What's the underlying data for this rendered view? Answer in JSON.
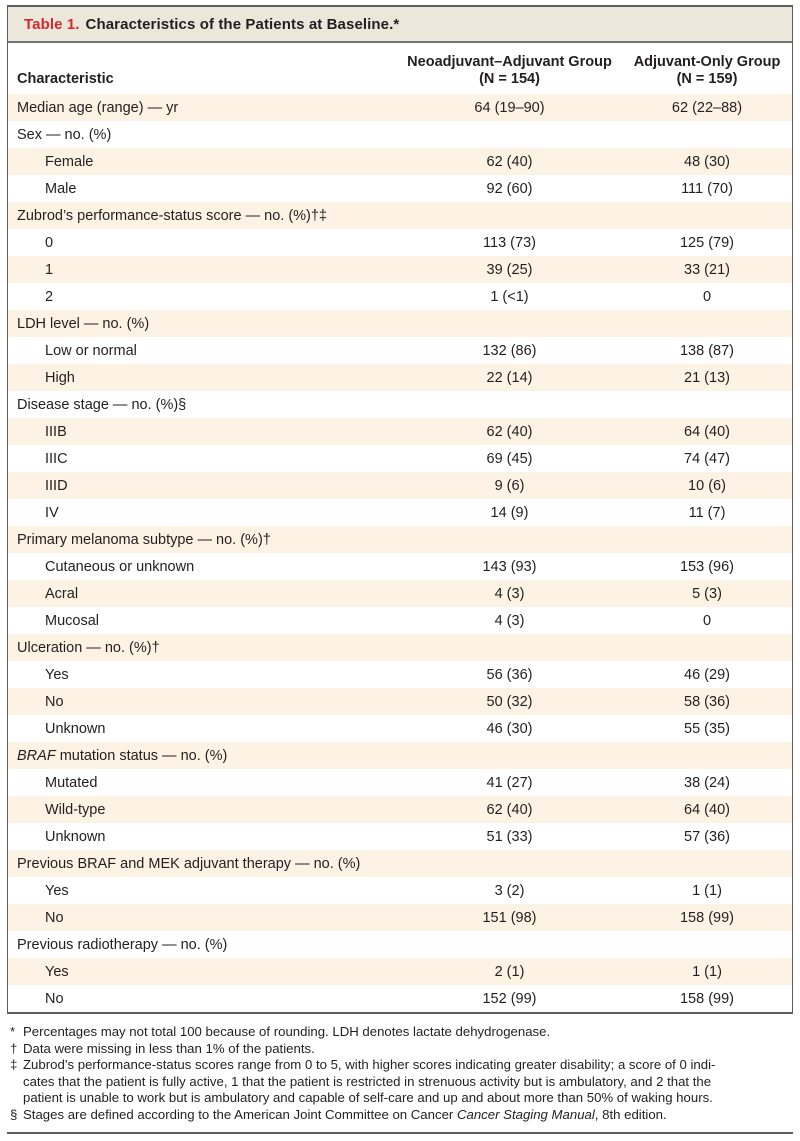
{
  "colors": {
    "accent_red": "#d7282e",
    "row_shade": "#fdf3e4",
    "title_band": "#ece7db",
    "border_gray": "#5c5d5f",
    "text": "#231f20"
  },
  "table": {
    "title_label": "Table 1.",
    "title_text": "Characteristics of the Patients at Baseline.*",
    "columns": {
      "characteristic": "Characteristic",
      "group1_line1": "Neoadjuvant–Adjuvant Group",
      "group1_line2": "(N = 154)",
      "group2_line1": "Adjuvant-Only Group",
      "group2_line2": "(N = 159)"
    },
    "rows": [
      {
        "label": "Median age (range) — yr",
        "indent": false,
        "shaded": true,
        "v1": "64 (19–90)",
        "v2": "62 (22–88)"
      },
      {
        "label": "Sex — no. (%)",
        "indent": false,
        "shaded": false,
        "v1": "",
        "v2": ""
      },
      {
        "label": "Female",
        "indent": true,
        "shaded": true,
        "v1": "62 (40)",
        "v2": "48 (30)"
      },
      {
        "label": "Male",
        "indent": true,
        "shaded": false,
        "v1": "92 (60)",
        "v2": "111 (70)"
      },
      {
        "label": "Zubrod’s performance-status score — no. (%)†‡",
        "indent": false,
        "shaded": true,
        "v1": "",
        "v2": ""
      },
      {
        "label": "0",
        "indent": true,
        "shaded": false,
        "v1": "113 (73)",
        "v2": "125 (79)"
      },
      {
        "label": "1",
        "indent": true,
        "shaded": true,
        "v1": "39 (25)",
        "v2": "33 (21)"
      },
      {
        "label": "2",
        "indent": true,
        "shaded": false,
        "v1": "1 (<1)",
        "v2": "0"
      },
      {
        "label": "LDH level — no. (%)",
        "indent": false,
        "shaded": true,
        "v1": "",
        "v2": ""
      },
      {
        "label": "Low or normal",
        "indent": true,
        "shaded": false,
        "v1": "132 (86)",
        "v2": "138 (87)"
      },
      {
        "label": "High",
        "indent": true,
        "shaded": true,
        "v1": "22 (14)",
        "v2": "21 (13)"
      },
      {
        "label": "Disease stage — no. (%)§",
        "indent": false,
        "shaded": false,
        "v1": "",
        "v2": ""
      },
      {
        "label": "IIIB",
        "indent": true,
        "shaded": true,
        "v1": "62 (40)",
        "v2": "64 (40)"
      },
      {
        "label": "IIIC",
        "indent": true,
        "shaded": false,
        "v1": "69 (45)",
        "v2": "74 (47)"
      },
      {
        "label": "IIID",
        "indent": true,
        "shaded": true,
        "v1": "9 (6)",
        "v2": "10 (6)"
      },
      {
        "label": "IV",
        "indent": true,
        "shaded": false,
        "v1": "14 (9)",
        "v2": "11 (7)"
      },
      {
        "label": "Primary melanoma subtype — no. (%)†",
        "indent": false,
        "shaded": true,
        "v1": "",
        "v2": ""
      },
      {
        "label": "Cutaneous or unknown",
        "indent": true,
        "shaded": false,
        "v1": "143 (93)",
        "v2": "153 (96)"
      },
      {
        "label": "Acral",
        "indent": true,
        "shaded": true,
        "v1": "4 (3)",
        "v2": "5 (3)"
      },
      {
        "label": "Mucosal",
        "indent": true,
        "shaded": false,
        "v1": "4 (3)",
        "v2": "0"
      },
      {
        "label": "Ulceration — no. (%)†",
        "indent": false,
        "shaded": true,
        "v1": "",
        "v2": ""
      },
      {
        "label": "Yes",
        "indent": true,
        "shaded": false,
        "v1": "56 (36)",
        "v2": "46 (29)"
      },
      {
        "label": "No",
        "indent": true,
        "shaded": true,
        "v1": "50 (32)",
        "v2": "58 (36)"
      },
      {
        "label": "Unknown",
        "indent": true,
        "shaded": false,
        "v1": "46 (30)",
        "v2": "55 (35)"
      },
      {
        "label_segments": [
          {
            "text": "BRAF",
            "italic": true
          },
          {
            "text": " mutation status — no. (%)",
            "italic": false
          }
        ],
        "indent": false,
        "shaded": true,
        "v1": "",
        "v2": ""
      },
      {
        "label": "Mutated",
        "indent": true,
        "shaded": false,
        "v1": "41 (27)",
        "v2": "38 (24)"
      },
      {
        "label": "Wild-type",
        "indent": true,
        "shaded": true,
        "v1": "62 (40)",
        "v2": "64 (40)"
      },
      {
        "label": "Unknown",
        "indent": true,
        "shaded": false,
        "v1": "51 (33)",
        "v2": "57 (36)"
      },
      {
        "label": "Previous BRAF and MEK adjuvant therapy — no. (%)",
        "indent": false,
        "shaded": true,
        "v1": "",
        "v2": ""
      },
      {
        "label": "Yes",
        "indent": true,
        "shaded": false,
        "v1": "3 (2)",
        "v2": "1 (1)"
      },
      {
        "label": "No",
        "indent": true,
        "shaded": true,
        "v1": "151 (98)",
        "v2": "158 (99)"
      },
      {
        "label": "Previous radiotherapy — no. (%)",
        "indent": false,
        "shaded": false,
        "v1": "",
        "v2": ""
      },
      {
        "label": "Yes",
        "indent": true,
        "shaded": true,
        "v1": "2 (1)",
        "v2": "1 (1)"
      },
      {
        "label": "No",
        "indent": true,
        "shaded": false,
        "v1": "152 (99)",
        "v2": "158 (99)"
      }
    ]
  },
  "footnotes": [
    {
      "symbol": "*",
      "lines": [
        [
          {
            "text": "Percentages may not total 100 because of rounding. LDH denotes lactate dehydrogenase.",
            "italic": false
          }
        ]
      ]
    },
    {
      "symbol": "†",
      "lines": [
        [
          {
            "text": "Data were missing in less than 1% of the patients.",
            "italic": false
          }
        ]
      ]
    },
    {
      "symbol": "‡",
      "lines": [
        [
          {
            "text": "Zubrod’s performance-status scores range from 0 to 5, with higher scores indicating greater disability; a score of 0 indi-",
            "italic": false
          }
        ],
        [
          {
            "text": "cates that the patient is fully active, 1 that the patient is restricted in strenuous activity but is ambulatory, and 2 that the",
            "italic": false
          }
        ],
        [
          {
            "text": "patient is unable to work but is ambulatory and capable of self-care and up and about more than 50% of waking hours.",
            "italic": false
          }
        ]
      ]
    },
    {
      "symbol": "§",
      "lines": [
        [
          {
            "text": "Stages are defined according to the American Joint Committee on Cancer ",
            "italic": false
          },
          {
            "text": "Cancer Staging Manual",
            "italic": true
          },
          {
            "text": ", 8th edition.",
            "italic": false
          }
        ]
      ]
    }
  ]
}
